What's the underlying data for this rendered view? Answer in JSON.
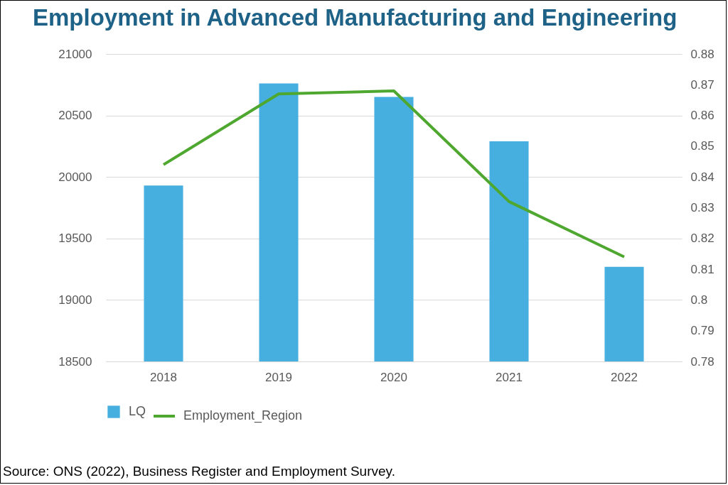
{
  "chart_data": {
    "type": "bar",
    "title": "Employment in Advanced Manufacturing and Engineering",
    "categories": [
      "2018",
      "2019",
      "2020",
      "2021",
      "2022"
    ],
    "series": [
      {
        "name": "LQ",
        "color": "#47afe0",
        "values": [
          19930,
          20760,
          20650,
          20290,
          19270
        ]
      },
      {
        "name": "Employment_Region",
        "type": "line",
        "axis": "y2",
        "color": "#4ea72e",
        "values": [
          0.844,
          0.867,
          0.868,
          0.832,
          0.814
        ]
      }
    ],
    "ylim": [
      18500,
      21000
    ],
    "yticks": [
      18500,
      19000,
      19500,
      20000,
      20500,
      21000
    ],
    "y2lim": [
      0.78,
      0.88
    ],
    "y2ticks": [
      0.78,
      0.79,
      0.8,
      0.81,
      0.82,
      0.83,
      0.84,
      0.85,
      0.86,
      0.87,
      0.88
    ],
    "grid": "y",
    "legend": "bottom",
    "annotations": [
      "Source: ONS (2022), Business Register and Employment Survey."
    ]
  }
}
